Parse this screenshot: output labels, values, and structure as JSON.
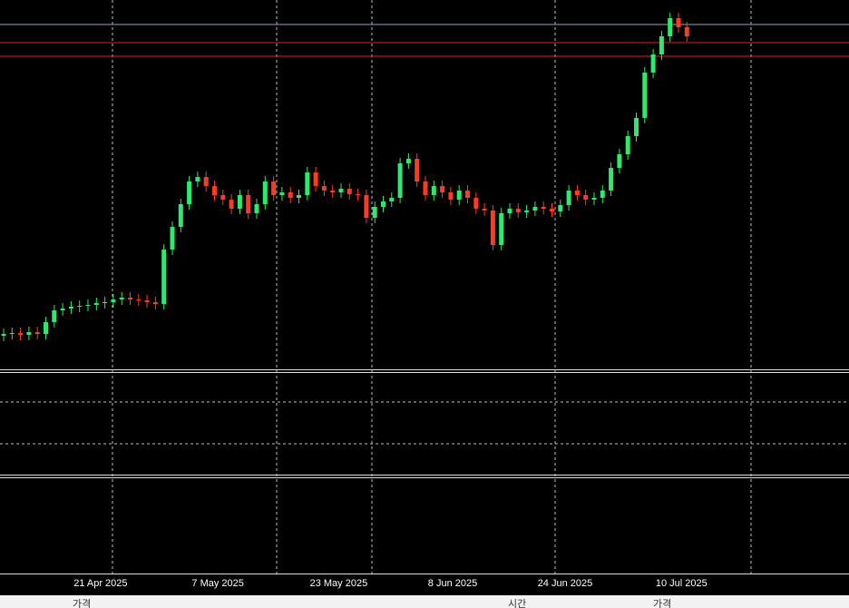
{
  "chart_data": {
    "type": "candlestick",
    "categories": [
      null,
      null,
      null,
      null,
      "21 Apr 2025",
      null,
      null,
      null,
      null,
      null,
      null,
      null,
      null,
      null,
      null,
      null,
      null,
      null,
      "7 May 2025",
      null,
      null,
      null,
      null,
      null,
      null,
      null,
      null,
      null,
      null,
      null,
      null,
      null,
      "23 May 2025",
      null,
      null,
      null,
      null,
      null,
      null,
      null,
      null,
      null,
      null,
      null,
      null,
      null,
      "8 Jun 2025",
      null,
      null,
      null,
      null,
      null,
      null,
      null,
      null,
      null,
      null,
      null,
      null,
      "24 Jun 2025",
      null,
      null,
      null,
      null,
      null,
      null,
      null,
      null,
      null,
      null,
      null,
      null,
      null,
      "10 Jul 2025",
      null,
      null,
      null,
      null,
      null,
      null,
      null,
      null
    ],
    "open": [
      40,
      42,
      43,
      41,
      44,
      42,
      55,
      68,
      70,
      72,
      73,
      74,
      76,
      77,
      80,
      82,
      80,
      79,
      77,
      75,
      135,
      160,
      185,
      210,
      215,
      205,
      195,
      190,
      180,
      195,
      175,
      185,
      210,
      195,
      198,
      192,
      195,
      220,
      205,
      200,
      198,
      202,
      196,
      195,
      170,
      182,
      188,
      192,
      230,
      235,
      210,
      195,
      205,
      198,
      190,
      200,
      192,
      180,
      178,
      140,
      175,
      180,
      176,
      178,
      182,
      180,
      177,
      184,
      200,
      195,
      190,
      192,
      200,
      225,
      240,
      260,
      280,
      330,
      350,
      370,
      390,
      380
    ],
    "high": [
      48,
      49,
      49,
      50,
      50,
      61,
      74,
      76,
      78,
      79,
      80,
      82,
      83,
      86,
      88,
      88,
      86,
      85,
      83,
      141,
      166,
      191,
      216,
      221,
      221,
      211,
      201,
      196,
      201,
      201,
      191,
      216,
      216,
      204,
      204,
      201,
      226,
      226,
      211,
      206,
      208,
      208,
      202,
      201,
      188,
      194,
      198,
      236,
      241,
      241,
      216,
      211,
      211,
      204,
      206,
      206,
      198,
      186,
      184,
      181,
      186,
      186,
      184,
      188,
      188,
      186,
      190,
      206,
      206,
      201,
      198,
      206,
      231,
      246,
      266,
      286,
      336,
      356,
      376,
      396,
      396,
      386
    ],
    "low": [
      34,
      36,
      35,
      35,
      36,
      36,
      49,
      62,
      64,
      66,
      67,
      68,
      70,
      71,
      74,
      74,
      73,
      71,
      69,
      69,
      129,
      154,
      179,
      204,
      199,
      189,
      184,
      174,
      174,
      169,
      169,
      179,
      189,
      189,
      186,
      186,
      189,
      199,
      194,
      192,
      192,
      190,
      189,
      164,
      164,
      176,
      182,
      186,
      224,
      204,
      189,
      189,
      192,
      184,
      184,
      186,
      174,
      172,
      134,
      134,
      169,
      170,
      170,
      172,
      174,
      171,
      171,
      178,
      189,
      184,
      184,
      186,
      194,
      219,
      234,
      254,
      274,
      324,
      344,
      364,
      374,
      364
    ],
    "close": [
      42,
      43,
      41,
      44,
      42,
      55,
      68,
      70,
      72,
      73,
      74,
      76,
      77,
      80,
      82,
      80,
      79,
      77,
      75,
      135,
      160,
      185,
      210,
      215,
      205,
      195,
      190,
      180,
      195,
      175,
      185,
      210,
      195,
      198,
      192,
      195,
      220,
      205,
      200,
      198,
      202,
      196,
      195,
      170,
      182,
      188,
      192,
      230,
      235,
      210,
      195,
      205,
      198,
      190,
      200,
      192,
      180,
      178,
      140,
      175,
      180,
      176,
      178,
      182,
      180,
      177,
      184,
      200,
      195,
      190,
      192,
      200,
      225,
      240,
      260,
      280,
      330,
      350,
      370,
      390,
      380,
      370
    ],
    "ylim": [
      0,
      410
    ],
    "up_color": "#2ee86f",
    "down_color": "#ff3b1f",
    "table_header": [
      "가격",
      "시간",
      "가격"
    ]
  }
}
